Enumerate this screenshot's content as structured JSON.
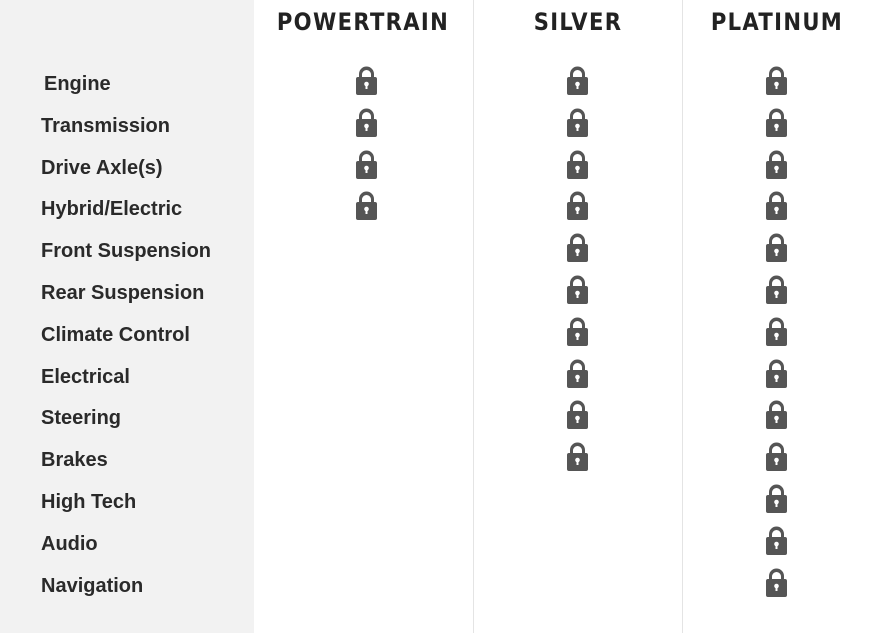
{
  "columns": [
    {
      "title": "POWERTRAIN",
      "covered_rows": 4
    },
    {
      "title": "SILVER",
      "covered_rows": 10
    },
    {
      "title": "PLATINUM",
      "covered_rows": 13
    }
  ],
  "rows": [
    "Engine",
    "Transmission",
    "Drive Axle(s)",
    "Hybrid/Electric",
    "Front Suspension",
    "Rear Suspension",
    "Climate Control",
    "Electrical",
    "Steering",
    "Brakes",
    "High Tech",
    "Audio",
    "Navigation"
  ],
  "icon": "lock-icon",
  "colors": {
    "icon": "#555555",
    "sidebar": "#f2f2f2",
    "text": "#2a2a2a"
  }
}
